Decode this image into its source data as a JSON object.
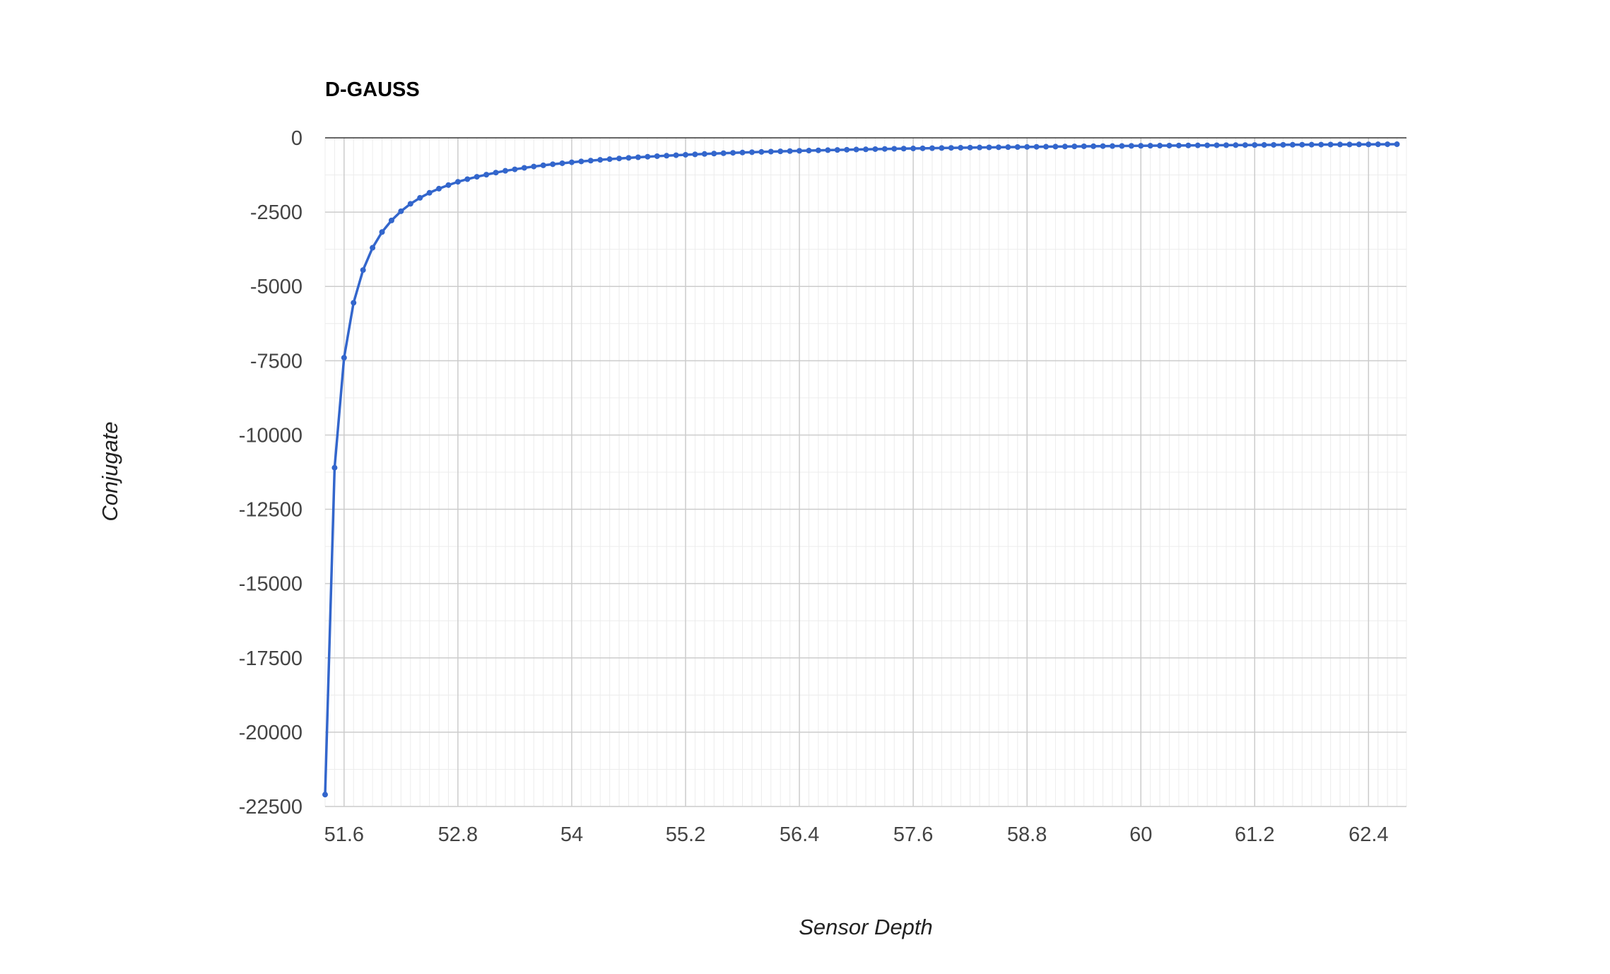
{
  "chart_data": {
    "type": "line",
    "title": "D-GAUSS",
    "xlabel": "Sensor Depth",
    "ylabel": "Conjugate",
    "xlim": [
      51.4,
      62.8
    ],
    "ylim": [
      -22500,
      0
    ],
    "x_ticks": [
      "51.6",
      "52.8",
      "54",
      "55.2",
      "56.4",
      "57.6",
      "58.8",
      "60",
      "61.2",
      "62.4"
    ],
    "x_tick_values": [
      51.6,
      52.8,
      54,
      55.2,
      56.4,
      57.6,
      58.8,
      60,
      61.2,
      62.4
    ],
    "y_ticks": [
      "0",
      "-2500",
      "-5000",
      "-7500",
      "-10000",
      "-12500",
      "-15000",
      "-17500",
      "-20000",
      "-22500"
    ],
    "y_tick_values": [
      0,
      -2500,
      -5000,
      -7500,
      -10000,
      -12500,
      -15000,
      -17500,
      -20000,
      -22500
    ],
    "grid": true,
    "legend": "none",
    "series": [
      {
        "name": "Conjugate",
        "color": "#3366cc",
        "x_start": 51.4,
        "x_step": 0.1,
        "values": [
          -22100,
          -11100,
          -7400,
          -5550,
          -4450,
          -3700,
          -3170,
          -2780,
          -2470,
          -2220,
          -2020,
          -1850,
          -1710,
          -1590,
          -1480,
          -1390,
          -1310,
          -1240,
          -1170,
          -1110,
          -1060,
          -1010,
          -965,
          -925,
          -888,
          -855,
          -823,
          -794,
          -767,
          -741,
          -717,
          -695,
          -674,
          -654,
          -635,
          -617,
          -601,
          -585,
          -570,
          -556,
          -542,
          -529,
          -517,
          -505,
          -494,
          -484,
          -474,
          -464,
          -455,
          -446,
          -437,
          -429,
          -421,
          -414,
          -407,
          -400,
          -393,
          -387,
          -380,
          -374,
          -369,
          -363,
          -358,
          -353,
          -348,
          -343,
          -338,
          -334,
          -329,
          -325,
          -321,
          -317,
          -313,
          -309,
          -305,
          -302,
          -298,
          -295,
          -292,
          -288,
          -285,
          -282,
          -279,
          -277,
          -274,
          -271,
          -268,
          -266,
          -263,
          -261,
          -258,
          -256,
          -254,
          -252,
          -249,
          -247,
          -245,
          -243,
          -241,
          -239,
          -237,
          -235,
          -233,
          -231,
          -230,
          -228,
          -226,
          -224,
          -223,
          -221,
          -220,
          -218,
          -216,
          -215
        ]
      }
    ]
  }
}
